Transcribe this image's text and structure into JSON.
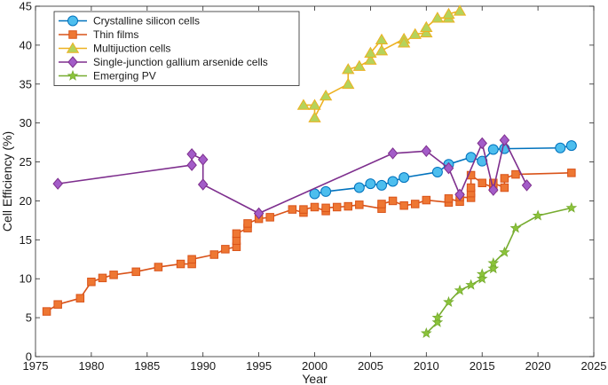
{
  "chart_data": {
    "type": "line",
    "title": "",
    "xlabel": "Year",
    "ylabel": "Cell Efficiency (%)",
    "xlim": [
      1975,
      2025
    ],
    "ylim": [
      0,
      45
    ],
    "xticks": [
      1975,
      1980,
      1985,
      1990,
      1995,
      2000,
      2005,
      2010,
      2015,
      2020,
      2025
    ],
    "yticks": [
      0,
      5,
      10,
      15,
      20,
      25,
      30,
      35,
      40,
      45
    ],
    "grid": false,
    "legend_position": "top-left",
    "series": [
      {
        "name": "Crystalline silicon cells",
        "color": "#0072BD",
        "fill": "#4DBEEE",
        "marker": "circle",
        "points": [
          [
            2000,
            20.9
          ],
          [
            2001,
            21.2
          ],
          [
            2004,
            21.7
          ],
          [
            2005,
            22.2
          ],
          [
            2006,
            22.0
          ],
          [
            2007,
            22.5
          ],
          [
            2008,
            23.0
          ],
          [
            2011,
            23.7
          ],
          [
            2012,
            24.7
          ],
          [
            2014,
            25.6
          ],
          [
            2015,
            25.1
          ],
          [
            2016,
            26.6
          ],
          [
            2017,
            26.7
          ],
          [
            2022,
            26.8
          ],
          [
            2023,
            27.1
          ]
        ]
      },
      {
        "name": "Thin films",
        "color": "#D95319",
        "fill": "#EE7733",
        "marker": "square",
        "points": [
          [
            1976,
            5.8
          ],
          [
            1977,
            6.7
          ],
          [
            1979,
            7.5
          ],
          [
            1980,
            9.6
          ],
          [
            1981,
            10.1
          ],
          [
            1982,
            10.5
          ],
          [
            1984,
            10.9
          ],
          [
            1986,
            11.5
          ],
          [
            1988,
            11.9
          ],
          [
            1989,
            11.9
          ],
          [
            1989,
            12.5
          ],
          [
            1991,
            13.1
          ],
          [
            1992,
            13.8
          ],
          [
            1993,
            14.1
          ],
          [
            1993,
            14.9
          ],
          [
            1993,
            15.8
          ],
          [
            1994,
            16.5
          ],
          [
            1994,
            17.1
          ],
          [
            1995,
            17.7
          ],
          [
            1996,
            17.9
          ],
          [
            1998,
            18.9
          ],
          [
            1999,
            18.5
          ],
          [
            1999,
            18.9
          ],
          [
            2000,
            19.2
          ],
          [
            2001,
            18.7
          ],
          [
            2001,
            19.1
          ],
          [
            2002,
            19.2
          ],
          [
            2003,
            19.3
          ],
          [
            2004,
            19.5
          ],
          [
            2006,
            19.0
          ],
          [
            2006,
            19.6
          ],
          [
            2007,
            20.0
          ],
          [
            2008,
            19.4
          ],
          [
            2009,
            19.6
          ],
          [
            2010,
            20.1
          ],
          [
            2012,
            19.8
          ],
          [
            2012,
            20.3
          ],
          [
            2013,
            19.9
          ],
          [
            2013,
            20.5
          ],
          [
            2014,
            20.4
          ],
          [
            2014,
            21.0
          ],
          [
            2014,
            21.7
          ],
          [
            2014,
            23.3
          ],
          [
            2015,
            22.3
          ],
          [
            2016,
            21.7
          ],
          [
            2016,
            22.1
          ],
          [
            2016,
            22.3
          ],
          [
            2017,
            21.7
          ],
          [
            2017,
            22.9
          ],
          [
            2018,
            23.4
          ],
          [
            2023,
            23.6
          ]
        ]
      },
      {
        "name": "Multijuction cells",
        "color": "#EDB120",
        "fill": "#B5D35B",
        "marker": "triangle",
        "points": [
          [
            1999,
            32.3
          ],
          [
            2000,
            32.3
          ],
          [
            2000,
            30.7
          ],
          [
            2001,
            33.5
          ],
          [
            2003,
            35.0
          ],
          [
            2003,
            36.9
          ],
          [
            2004,
            37.3
          ],
          [
            2005,
            38.1
          ],
          [
            2005,
            39.0
          ],
          [
            2006,
            40.7
          ],
          [
            2006,
            39.3
          ],
          [
            2008,
            40.8
          ],
          [
            2008,
            40.3
          ],
          [
            2009,
            41.4
          ],
          [
            2010,
            41.6
          ],
          [
            2010,
            42.3
          ],
          [
            2011,
            43.5
          ],
          [
            2012,
            43.5
          ],
          [
            2012,
            44.0
          ],
          [
            2013,
            44.4
          ]
        ]
      },
      {
        "name": "Single-junction gallium arsenide cells",
        "color": "#7E2F8E",
        "fill": "#A35CC8",
        "marker": "diamond",
        "points": [
          [
            1977,
            22.2
          ],
          [
            1989,
            24.6
          ],
          [
            1989,
            26.0
          ],
          [
            1990,
            25.3
          ],
          [
            1990,
            22.1
          ],
          [
            1995,
            18.4
          ],
          [
            2007,
            26.1
          ],
          [
            2010,
            26.4
          ],
          [
            2012,
            24.2
          ],
          [
            2013,
            20.8
          ],
          [
            2015,
            27.4
          ],
          [
            2016,
            21.4
          ],
          [
            2017,
            27.8
          ],
          [
            2019,
            22.0
          ]
        ]
      },
      {
        "name": "Emerging PV",
        "color": "#77AC30",
        "fill": "#8BC43A",
        "marker": "star",
        "points": [
          [
            2010,
            3.0
          ],
          [
            2011,
            4.4
          ],
          [
            2011,
            5.0
          ],
          [
            2012,
            7.0
          ],
          [
            2013,
            8.5
          ],
          [
            2014,
            9.2
          ],
          [
            2015,
            10.0
          ],
          [
            2015,
            10.6
          ],
          [
            2016,
            11.3
          ],
          [
            2016,
            12.0
          ],
          [
            2017,
            13.4
          ],
          [
            2018,
            16.5
          ],
          [
            2020,
            18.1
          ],
          [
            2023,
            19.1
          ]
        ]
      }
    ]
  }
}
